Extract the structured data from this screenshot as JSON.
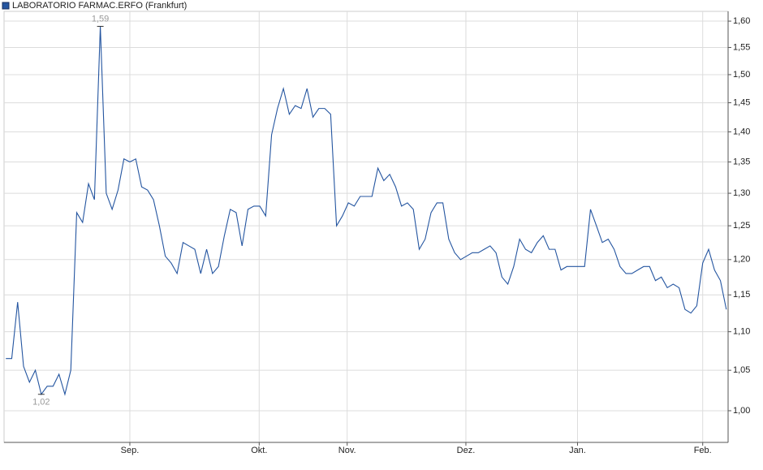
{
  "chart_data": {
    "type": "line",
    "series": [
      {
        "name": "LABORATORIO FARMAC.ERFO (Frankfurt)",
        "color": "#2455a0",
        "values": [
          1.065,
          1.065,
          1.14,
          1.055,
          1.035,
          1.05,
          1.02,
          1.03,
          1.03,
          1.045,
          1.02,
          1.05,
          1.27,
          1.255,
          1.315,
          1.29,
          1.59,
          1.3,
          1.275,
          1.305,
          1.355,
          1.35,
          1.355,
          1.31,
          1.305,
          1.29,
          1.25,
          1.205,
          1.195,
          1.18,
          1.225,
          1.22,
          1.215,
          1.18,
          1.215,
          1.18,
          1.19,
          1.235,
          1.275,
          1.27,
          1.22,
          1.275,
          1.28,
          1.28,
          1.265,
          1.395,
          1.44,
          1.475,
          1.43,
          1.445,
          1.44,
          1.475,
          1.425,
          1.44,
          1.44,
          1.43,
          1.25,
          1.265,
          1.285,
          1.28,
          1.295,
          1.295,
          1.295,
          1.34,
          1.32,
          1.33,
          1.31,
          1.28,
          1.285,
          1.275,
          1.215,
          1.23,
          1.27,
          1.285,
          1.285,
          1.23,
          1.21,
          1.2,
          1.205,
          1.21,
          1.21,
          1.215,
          1.22,
          1.21,
          1.175,
          1.165,
          1.19,
          1.23,
          1.215,
          1.21,
          1.225,
          1.235,
          1.215,
          1.215,
          1.185,
          1.19,
          1.19,
          1.19,
          1.19,
          1.275,
          1.25,
          1.225,
          1.23,
          1.215,
          1.19,
          1.18,
          1.18,
          1.185,
          1.19,
          1.19,
          1.17,
          1.175,
          1.16,
          1.165,
          1.16,
          1.13,
          1.125,
          1.135,
          1.195,
          1.215,
          1.185,
          1.17,
          1.13
        ]
      }
    ],
    "xlim": [
      -0.3,
      122.3
    ],
    "xticks": [
      {
        "value": 21,
        "label": "Sep."
      },
      {
        "value": 42.9,
        "label": "Okt."
      },
      {
        "value": 57.8,
        "label": "Nov."
      },
      {
        "value": 77.9,
        "label": "Dez."
      },
      {
        "value": 96.8,
        "label": "Jan."
      },
      {
        "value": 118,
        "label": "Feb."
      }
    ],
    "ylim": [
      0.9625,
      1.619
    ],
    "log_scale": true,
    "grid": true,
    "yticks": [
      {
        "value": 1.0,
        "label": "1,00"
      },
      {
        "value": 1.05,
        "label": "1,05"
      },
      {
        "value": 1.1,
        "label": "1,10"
      },
      {
        "value": 1.15,
        "label": "1,15"
      },
      {
        "value": 1.2,
        "label": "1,20"
      },
      {
        "value": 1.25,
        "label": "1,25"
      },
      {
        "value": 1.3,
        "label": "1,30"
      },
      {
        "value": 1.35,
        "label": "1,35"
      },
      {
        "value": 1.4,
        "label": "1,40"
      },
      {
        "value": 1.45,
        "label": "1,45"
      },
      {
        "value": 1.5,
        "label": "1,50"
      },
      {
        "value": 1.55,
        "label": "1,55"
      },
      {
        "value": 1.6,
        "label": "1,60"
      }
    ],
    "annotations": [
      {
        "value": 1.59,
        "label": "1,59"
      },
      {
        "value": 1.02,
        "label": "1,02"
      }
    ]
  }
}
